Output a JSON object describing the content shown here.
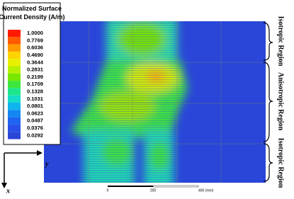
{
  "legend": {
    "title": "Normalized Surface Current Density (A/m)",
    "entries": [
      {
        "label": "1.0000",
        "color": "#ff1a00"
      },
      {
        "label": "0.7769",
        "color": "#ff5a00"
      },
      {
        "label": "0.6036",
        "color": "#ff9a00"
      },
      {
        "label": "0.4690",
        "color": "#ffd400"
      },
      {
        "label": "0.3644",
        "color": "#e8f000"
      },
      {
        "label": "0.2831",
        "color": "#b4f000"
      },
      {
        "label": "0.2199",
        "color": "#78e800"
      },
      {
        "label": "0.1709",
        "color": "#3ce63c"
      },
      {
        "label": "0.1328",
        "color": "#1ee68c"
      },
      {
        "label": "0.1031",
        "color": "#14dcc8"
      },
      {
        "label": "0.0801",
        "color": "#10b4ee"
      },
      {
        "label": "0.0623",
        "color": "#1488f0"
      },
      {
        "label": "0.0487",
        "color": "#1e64f0"
      },
      {
        "label": "0.0376",
        "color": "#2850e8"
      },
      {
        "label": "0.0292",
        "color": "#2a46d8"
      }
    ]
  },
  "regions": [
    "Isotropic Region",
    "Anisotropic Region",
    "Isotropic Region"
  ],
  "axes": {
    "x": "x",
    "y": "y"
  },
  "scale_bar": [
    "0",
    "200",
    "400 (mm)"
  ]
}
